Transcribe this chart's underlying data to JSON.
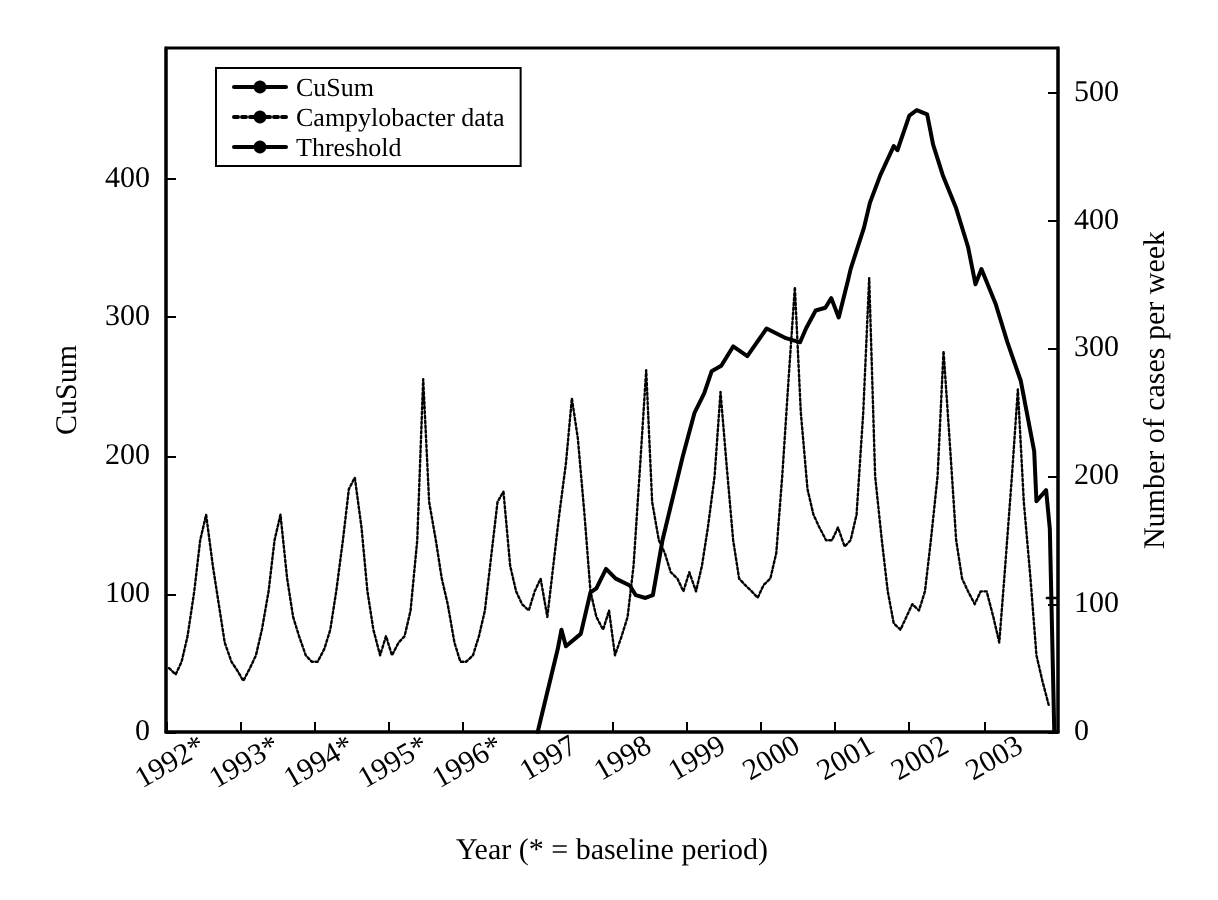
{
  "chart_data": {
    "type": "line",
    "xlabel": "Year (* = baseline period)",
    "ylabel": "CuSum",
    "y2label": "Number of cases per week",
    "xlim": [
      1992,
      2004
    ],
    "xticks": [
      {
        "value": 1992,
        "label": null
      },
      {
        "value": 1992.5,
        "label": "1992*"
      },
      {
        "value": 1993,
        "label": null
      },
      {
        "value": 1993.5,
        "label": "1993*"
      },
      {
        "value": 1994,
        "label": null
      },
      {
        "value": 1994.5,
        "label": "1994*"
      },
      {
        "value": 1995,
        "label": null
      },
      {
        "value": 1995.5,
        "label": "1995*"
      },
      {
        "value": 1996,
        "label": null
      },
      {
        "value": 1996.5,
        "label": "1996*"
      },
      {
        "value": 1997,
        "label": null
      },
      {
        "value": 1997.5,
        "label": "1997"
      },
      {
        "value": 1998,
        "label": null
      },
      {
        "value": 1998.5,
        "label": "1998"
      },
      {
        "value": 1999,
        "label": null
      },
      {
        "value": 1999.5,
        "label": "1999"
      },
      {
        "value": 2000,
        "label": null
      },
      {
        "value": 2000.5,
        "label": "2000"
      },
      {
        "value": 2001,
        "label": null
      },
      {
        "value": 2001.5,
        "label": "2001"
      },
      {
        "value": 2002,
        "label": null
      },
      {
        "value": 2002.5,
        "label": "2002"
      },
      {
        "value": 2003,
        "label": null
      },
      {
        "value": 2003.5,
        "label": "2003"
      }
    ],
    "ylim": [
      0,
      495
    ],
    "yticks": [
      0,
      100,
      200,
      300,
      400
    ],
    "y2lim": [
      0,
      535
    ],
    "y2ticks": [
      0,
      100,
      200,
      300,
      400,
      500
    ],
    "grid": false,
    "legend": "top left",
    "marker": "none",
    "series": [
      {
        "name": "CuSum",
        "color": "#000000",
        "line_style": "solid",
        "x": [
          1997.0,
          1997.27,
          1997.32,
          1997.38,
          1997.58,
          1997.71,
          1997.79,
          1997.92,
          1998.05,
          1998.24,
          1998.32,
          1998.45,
          1998.55,
          1998.68,
          1998.95,
          1999.11,
          1999.24,
          1999.34,
          1999.47,
          1999.63,
          1999.82,
          2000.08,
          2000.34,
          2000.53,
          2000.61,
          2000.74,
          2000.87,
          2000.95,
          2001.05,
          2001.18,
          2001.21,
          2001.39,
          2001.47,
          2001.61,
          2001.79,
          2001.84,
          2002.0,
          2002.1,
          2002.24,
          2002.32,
          2002.45,
          2002.63,
          2002.79,
          2002.89,
          2002.97,
          2003.16,
          2003.32,
          2003.5,
          2003.68,
          2003.71,
          2003.84,
          2003.89,
          2003.95
        ],
        "values": [
          0,
          60,
          74,
          62,
          71,
          101,
          104,
          118,
          111,
          106,
          99,
          97,
          99,
          139,
          199,
          231,
          245,
          261,
          265,
          279,
          272,
          292,
          285,
          282,
          292,
          305,
          307,
          314,
          300,
          328,
          335,
          365,
          383,
          403,
          424,
          421,
          446,
          450,
          447,
          425,
          403,
          379,
          351,
          324,
          335,
          310,
          282,
          254,
          203,
          167,
          175,
          147,
          0
        ]
      },
      {
        "name": "Campylobacter data",
        "color": "#000000",
        "line_style": "dotted",
        "axis": "y2",
        "x": [
          1992.04,
          1992.13,
          1992.21,
          1992.29,
          1992.38,
          1992.46,
          1992.54,
          1992.63,
          1992.71,
          1992.79,
          1992.88,
          1992.96,
          1993.04,
          1993.13,
          1993.21,
          1993.29,
          1993.38,
          1993.46,
          1993.54,
          1993.63,
          1993.71,
          1993.79,
          1993.88,
          1993.96,
          1994.04,
          1994.13,
          1994.21,
          1994.29,
          1994.38,
          1994.46,
          1994.54,
          1994.63,
          1994.71,
          1994.79,
          1994.88,
          1994.96,
          1995.04,
          1995.13,
          1995.21,
          1995.29,
          1995.38,
          1995.46,
          1995.54,
          1995.63,
          1995.71,
          1995.79,
          1995.88,
          1995.96,
          1996.04,
          1996.13,
          1996.21,
          1996.29,
          1996.38,
          1996.46,
          1996.54,
          1996.63,
          1996.71,
          1996.79,
          1996.88,
          1996.96,
          1997.04,
          1997.13,
          1997.21,
          1997.29,
          1997.38,
          1997.46,
          1997.54,
          1997.63,
          1997.71,
          1997.79,
          1997.88,
          1997.96,
          1998.04,
          1998.13,
          1998.21,
          1998.29,
          1998.38,
          1998.46,
          1998.54,
          1998.63,
          1998.71,
          1998.79,
          1998.88,
          1998.96,
          1999.04,
          1999.13,
          1999.21,
          1999.29,
          1999.38,
          1999.46,
          1999.54,
          1999.63,
          1999.71,
          1999.79,
          1999.88,
          1999.96,
          2000.04,
          2000.13,
          2000.21,
          2000.29,
          2000.38,
          2000.46,
          2000.54,
          2000.63,
          2000.71,
          2000.79,
          2000.88,
          2000.96,
          2001.04,
          2001.13,
          2001.21,
          2001.29,
          2001.38,
          2001.46,
          2001.54,
          2001.63,
          2001.71,
          2001.79,
          2001.88,
          2001.96,
          2002.04,
          2002.13,
          2002.21,
          2002.29,
          2002.38,
          2002.46,
          2002.54,
          2002.63,
          2002.71,
          2002.79,
          2002.88,
          2002.96,
          2003.04,
          2003.13,
          2003.21,
          2003.29,
          2003.38,
          2003.46,
          2003.54,
          2003.63,
          2003.71,
          2003.79,
          2003.88
        ],
        "values": [
          50,
          45,
          55,
          75,
          110,
          150,
          170,
          130,
          100,
          70,
          55,
          48,
          40,
          50,
          60,
          80,
          110,
          150,
          170,
          120,
          90,
          75,
          60,
          55,
          55,
          65,
          80,
          110,
          150,
          190,
          199,
          160,
          110,
          80,
          60,
          75,
          60,
          70,
          75,
          95,
          150,
          276,
          180,
          150,
          120,
          100,
          70,
          55,
          55,
          60,
          75,
          95,
          140,
          180,
          188,
          130,
          110,
          100,
          95,
          110,
          120,
          90,
          130,
          170,
          210,
          261,
          230,
          170,
          110,
          90,
          80,
          95,
          60,
          75,
          90,
          130,
          210,
          283,
          180,
          150,
          140,
          125,
          120,
          110,
          125,
          110,
          130,
          160,
          200,
          266,
          210,
          150,
          120,
          115,
          110,
          105,
          115,
          120,
          140,
          200,
          280,
          348,
          250,
          190,
          170,
          160,
          150,
          150,
          160,
          145,
          150,
          170,
          250,
          355,
          200,
          150,
          110,
          85,
          80,
          90,
          100,
          95,
          110,
          150,
          200,
          298,
          230,
          150,
          120,
          110,
          100,
          110,
          110,
          90,
          70,
          130,
          200,
          268,
          180,
          120,
          60,
          40,
          20
        ]
      },
      {
        "name": "Threshold",
        "color": "#000000",
        "line_style": "solid",
        "x": [
          2003.85,
          2004
        ],
        "values": [
          97,
          97
        ]
      }
    ]
  }
}
